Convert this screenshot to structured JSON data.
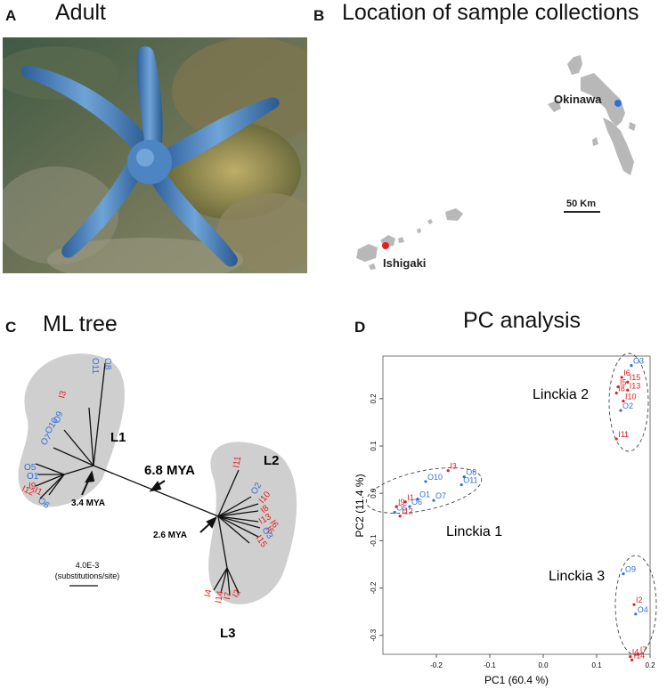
{
  "panelA": {
    "letter": "A",
    "title": "Adult"
  },
  "panelB": {
    "letter": "B",
    "title": "Location of sample collections",
    "sites": [
      {
        "label": "Okinawa",
        "color": "#2f6fdb"
      },
      {
        "label": "Ishigaki",
        "color": "#e02020"
      }
    ],
    "scalebar": "50 Km"
  },
  "panelC": {
    "letter": "C",
    "title": "ML tree",
    "clades": [
      "L1",
      "L2",
      "L3"
    ],
    "times": {
      "root": "6.8 MYA",
      "l1": "3.4 MYA",
      "l2l3": "2.6 MYA"
    },
    "scale": {
      "value": "4.0E-3",
      "unit": "(substitutions/site)"
    },
    "tips": {
      "l1": [
        "O8",
        "O11",
        "I3",
        "O9",
        "O10",
        "O7",
        "O5",
        "O1",
        "I9",
        "I12",
        "I1",
        "O6"
      ],
      "l2": [
        "I11",
        "O2",
        "I10",
        "I8",
        "I13",
        "I5",
        "I6",
        "O3",
        "I15"
      ],
      "l3": [
        "I4",
        "I14",
        "I7",
        "I2"
      ]
    }
  },
  "panelD": {
    "letter": "D",
    "title": "PC analysis",
    "groups": [
      "Linckia 1",
      "Linckia 2",
      "Linckia 3"
    ],
    "colors": {
      "okinawa": "#2f6fdb",
      "ishigaki": "#e02020"
    },
    "chart_data": {
      "type": "scatter",
      "xlabel": "PC1 (60.4 %)",
      "ylabel": "PC2 (11.4 %)",
      "xlim": [
        -0.3,
        0.2
      ],
      "ylim": [
        -0.34,
        0.29
      ],
      "xticks": [
        "-0.2",
        "-0.1",
        "0.0",
        "0.1",
        "0.2"
      ],
      "yticks": [
        "-0.3",
        "-0.2",
        "-0.1",
        "0.0",
        "0.1",
        "0.2"
      ],
      "points": [
        {
          "label": "O3",
          "x": 0.165,
          "y": 0.27,
          "site": "okinawa"
        },
        {
          "label": "I6",
          "x": 0.147,
          "y": 0.245,
          "site": "ishigaki"
        },
        {
          "label": "I15",
          "x": 0.158,
          "y": 0.235,
          "site": "ishigaki"
        },
        {
          "label": "I5",
          "x": 0.14,
          "y": 0.225,
          "site": "ishigaki"
        },
        {
          "label": "I8",
          "x": 0.137,
          "y": 0.212,
          "site": "ishigaki"
        },
        {
          "label": "I13",
          "x": 0.158,
          "y": 0.218,
          "site": "ishigaki"
        },
        {
          "label": "I10",
          "x": 0.15,
          "y": 0.195,
          "site": "ishigaki"
        },
        {
          "label": "O2",
          "x": 0.145,
          "y": 0.175,
          "site": "okinawa"
        },
        {
          "label": "I11",
          "x": 0.137,
          "y": 0.115,
          "site": "ishigaki"
        },
        {
          "label": "I3",
          "x": -0.178,
          "y": 0.048,
          "site": "ishigaki"
        },
        {
          "label": "O8",
          "x": -0.148,
          "y": 0.035,
          "site": "okinawa"
        },
        {
          "label": "O10",
          "x": -0.22,
          "y": 0.025,
          "site": "okinawa"
        },
        {
          "label": "O11",
          "x": -0.153,
          "y": 0.018,
          "site": "okinawa"
        },
        {
          "label": "O1",
          "x": -0.235,
          "y": -0.012,
          "site": "okinawa"
        },
        {
          "label": "O7",
          "x": -0.205,
          "y": -0.015,
          "site": "okinawa"
        },
        {
          "label": "O6",
          "x": -0.25,
          "y": -0.028,
          "site": "okinawa"
        },
        {
          "label": "I1",
          "x": -0.258,
          "y": -0.018,
          "site": "ishigaki"
        },
        {
          "label": "I9",
          "x": -0.275,
          "y": -0.028,
          "site": "ishigaki"
        },
        {
          "label": "O5",
          "x": -0.278,
          "y": -0.04,
          "site": "okinawa"
        },
        {
          "label": "I12",
          "x": -0.268,
          "y": -0.048,
          "site": "ishigaki"
        },
        {
          "label": "O9",
          "x": 0.15,
          "y": -0.17,
          "site": "okinawa"
        },
        {
          "label": "I2",
          "x": 0.17,
          "y": -0.235,
          "site": "ishigaki"
        },
        {
          "label": "O4",
          "x": 0.173,
          "y": -0.255,
          "site": "okinawa"
        },
        {
          "label": "I7",
          "x": 0.178,
          "y": -0.34,
          "site": "ishigaki"
        },
        {
          "label": "I4",
          "x": 0.163,
          "y": -0.345,
          "site": "ishigaki"
        },
        {
          "label": "I14",
          "x": 0.166,
          "y": -0.352,
          "site": "ishigaki"
        }
      ]
    }
  }
}
